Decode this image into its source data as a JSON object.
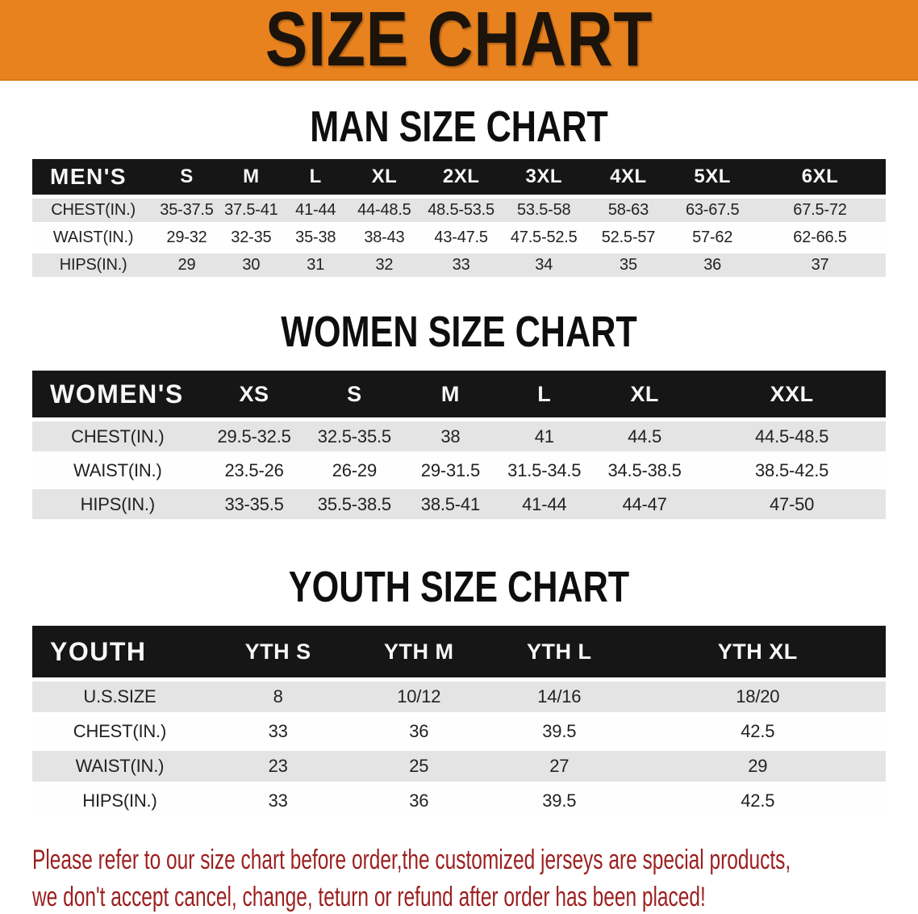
{
  "banner": {
    "title": "SIZE CHART"
  },
  "men_chart": {
    "heading": "MAN SIZE CHART",
    "header_label": "MEN'S",
    "columns": [
      "S",
      "M",
      "L",
      "XL",
      "2XL",
      "3XL",
      "4XL",
      "5XL",
      "6XL"
    ],
    "rows": [
      {
        "label": "CHEST(IN.)",
        "values": [
          "35-37.5",
          "37.5-41",
          "41-44",
          "44-48.5",
          "48.5-53.5",
          "53.5-58",
          "58-63",
          "63-67.5",
          "67.5-72"
        ]
      },
      {
        "label": "WAIST(IN.)",
        "values": [
          "29-32",
          "32-35",
          "35-38",
          "38-43",
          "43-47.5",
          "47.5-52.5",
          "52.5-57",
          "57-62",
          "62-66.5"
        ]
      },
      {
        "label": "HIPS(IN.)",
        "values": [
          "29",
          "30",
          "31",
          "32",
          "33",
          "34",
          "35",
          "36",
          "37"
        ]
      }
    ]
  },
  "women_chart": {
    "heading": "WOMEN SIZE CHART",
    "header_label": "WOMEN'S",
    "columns": [
      "XS",
      "S",
      "M",
      "L",
      "XL",
      "XXL"
    ],
    "rows": [
      {
        "label": "CHEST(IN.)",
        "values": [
          "29.5-32.5",
          "32.5-35.5",
          "38",
          "41",
          "44.5",
          "44.5-48.5"
        ]
      },
      {
        "label": "WAIST(IN.)",
        "values": [
          "23.5-26",
          "26-29",
          "29-31.5",
          "31.5-34.5",
          "34.5-38.5",
          "38.5-42.5"
        ]
      },
      {
        "label": "HIPS(IN.)",
        "values": [
          "33-35.5",
          "35.5-38.5",
          "38.5-41",
          "41-44",
          "44-47",
          "47-50"
        ]
      }
    ]
  },
  "youth_chart": {
    "heading": "YOUTH SIZE CHART",
    "header_label": "YOUTH",
    "columns": [
      "YTH S",
      "YTH M",
      "YTH L",
      "YTH XL"
    ],
    "rows": [
      {
        "label": "U.S.SIZE",
        "values": [
          "8",
          "10/12",
          "14/16",
          "18/20"
        ]
      },
      {
        "label": "CHEST(IN.)",
        "values": [
          "33",
          "36",
          "39.5",
          "42.5"
        ]
      },
      {
        "label": "WAIST(IN.)",
        "values": [
          "23",
          "25",
          "27",
          "29"
        ]
      },
      {
        "label": "HIPS(IN.)",
        "values": [
          "33",
          "36",
          "39.5",
          "42.5"
        ]
      }
    ]
  },
  "footer": {
    "line1": "Please refer to our size chart before order,the customized jerseys are special products,",
    "line2": "we don't accept cancel, change, teturn or refund after order has been placed!"
  },
  "colors": {
    "banner_bg": "#E8821E",
    "banner_text": "#1C130B",
    "header_bar_bg": "#171616",
    "header_bar_text": "#F7F7F7",
    "row_alt_bg": "#E4E4E4",
    "row_bg": "#FEFEFE",
    "body_text": "#222222",
    "notice_text": "#9C1F1F"
  }
}
